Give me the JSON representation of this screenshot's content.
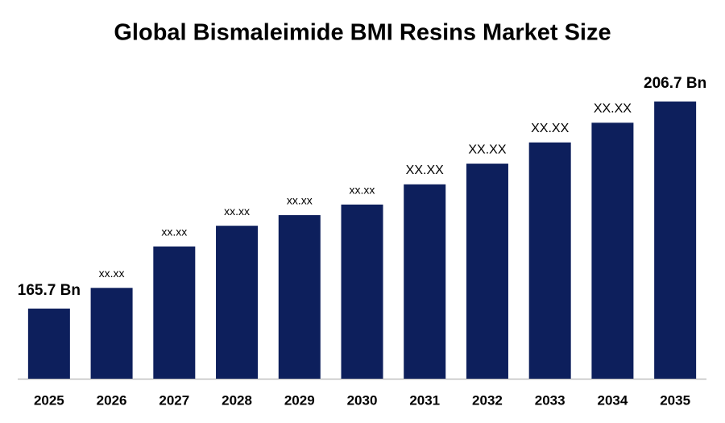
{
  "chart_data": {
    "type": "bar",
    "title": "Global Bismaleimide BMI Resins Market Size",
    "categories": [
      "2025",
      "2026",
      "2027",
      "2028",
      "2029",
      "2030",
      "2031",
      "2032",
      "2033",
      "2034",
      "2035"
    ],
    "values": [
      165.7,
      169.8,
      178.0,
      182.1,
      184.2,
      186.3,
      190.3,
      194.4,
      198.6,
      202.5,
      206.7
    ],
    "value_labels": [
      "165.7 Bn",
      "xx.xx",
      "xx.xx",
      "xx.xx",
      "xx.xx",
      "xx.xx",
      "XX.XX",
      "XX.XX",
      "XX.XX",
      "XX.XX",
      "206.7 Bn"
    ],
    "color": "#0d1f5c"
  }
}
